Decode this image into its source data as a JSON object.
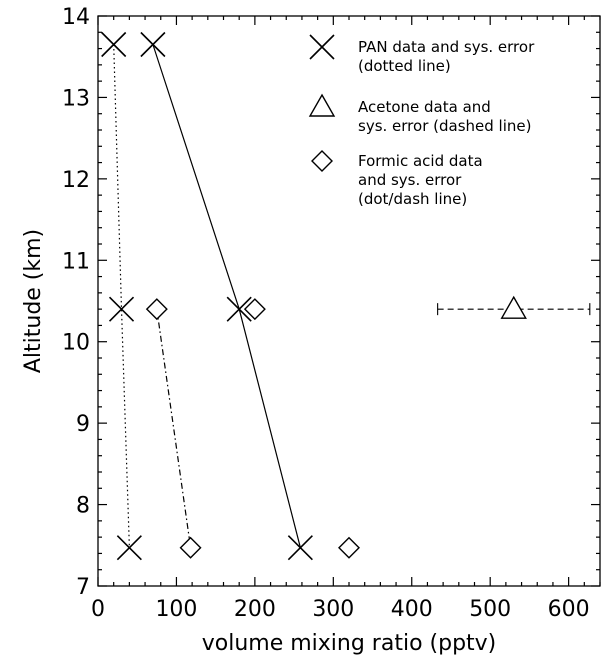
{
  "chart_data": {
    "type": "scatter",
    "title": "",
    "xlabel": "volume mixing ratio (pptv)",
    "ylabel": "Altitude (km)",
    "xlim": [
      0,
      640
    ],
    "ylim": [
      7,
      14
    ],
    "xticks": [
      0,
      100,
      200,
      300,
      400,
      500,
      600
    ],
    "yticks": [
      7,
      8,
      9,
      10,
      11,
      12,
      13,
      14
    ],
    "grid": false,
    "legend_position": "top-right",
    "series": [
      {
        "name": "PAN data and sys. error (dotted line)",
        "marker": "x",
        "points": [
          {
            "x": 20,
            "y": 13.65
          },
          {
            "x": 70,
            "y": 13.65
          },
          {
            "x": 30,
            "y": 10.4
          },
          {
            "x": 180,
            "y": 10.4
          },
          {
            "x": 40,
            "y": 7.47
          },
          {
            "x": 258,
            "y": 7.47
          }
        ],
        "error_lines": [
          {
            "style": "dotted",
            "points": [
              {
                "x": 20,
                "y": 13.65
              },
              {
                "x": 30,
                "y": 10.4
              },
              {
                "x": 40,
                "y": 7.47
              }
            ]
          },
          {
            "style": "solid",
            "points": [
              {
                "x": 70,
                "y": 13.65
              },
              {
                "x": 180,
                "y": 10.4
              },
              {
                "x": 258,
                "y": 7.47
              }
            ]
          }
        ]
      },
      {
        "name": "Acetone data and sys. error (dashed line)",
        "marker": "triangle",
        "points": [
          {
            "x": 530,
            "y": 10.4,
            "xerr_low": 433,
            "xerr_high": 627
          }
        ]
      },
      {
        "name": "Formic acid data and sys. error (dot/dash line)",
        "marker": "diamond",
        "points": [
          {
            "x": 75,
            "y": 10.4
          },
          {
            "x": 200,
            "y": 10.4
          },
          {
            "x": 118,
            "y": 7.47
          },
          {
            "x": 320,
            "y": 7.47
          }
        ],
        "error_lines": [
          {
            "style": "dotdash",
            "points": [
              {
                "x": 75,
                "y": 10.4
              },
              {
                "x": 118,
                "y": 7.47
              }
            ]
          }
        ]
      }
    ],
    "legend": {
      "entries": [
        {
          "marker": "x",
          "lines": [
            "PAN data and sys. error",
            "(dotted line)"
          ]
        },
        {
          "marker": "triangle",
          "lines": [
            "Acetone data and",
            "sys. error (dashed line)"
          ]
        },
        {
          "marker": "diamond",
          "lines": [
            "Formic acid data",
            "and sys. error",
            "(dot/dash line)"
          ]
        }
      ]
    }
  }
}
